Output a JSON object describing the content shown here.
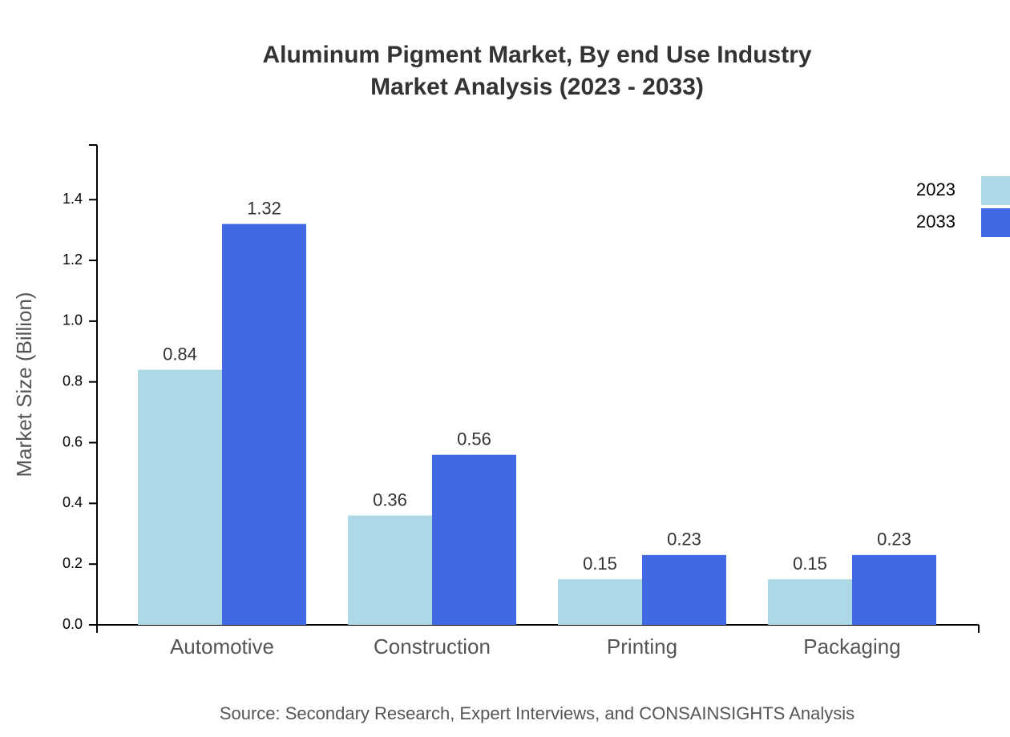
{
  "chart_data": {
    "type": "bar",
    "title": "Aluminum Pigment Market, By end Use Industry",
    "subtitle": "Market Analysis (2023 - 2033)",
    "y_label": "Market Size (Billion)",
    "source": "Source: Secondary Research, Expert Interviews, and CONSAINSIGHTS Analysis",
    "categories": [
      "Automotive",
      "Construction",
      "Printing",
      "Packaging"
    ],
    "series": [
      {
        "name": "2023",
        "color": "#add8e6",
        "values": [
          0.84,
          0.36,
          0.15,
          0.15
        ]
      },
      {
        "name": "2033",
        "color": "#4169e1",
        "values": [
          1.32,
          0.56,
          0.23,
          0.23
        ]
      }
    ],
    "ylim": [
      0,
      1.58
    ],
    "yticks": [
      {
        "value": 0,
        "label": "0.0"
      },
      0.2,
      0.4,
      0.6,
      0.8,
      {
        "value": 1,
        "label": "1.0"
      },
      1.2,
      1.4
    ],
    "legend": "top-right"
  }
}
